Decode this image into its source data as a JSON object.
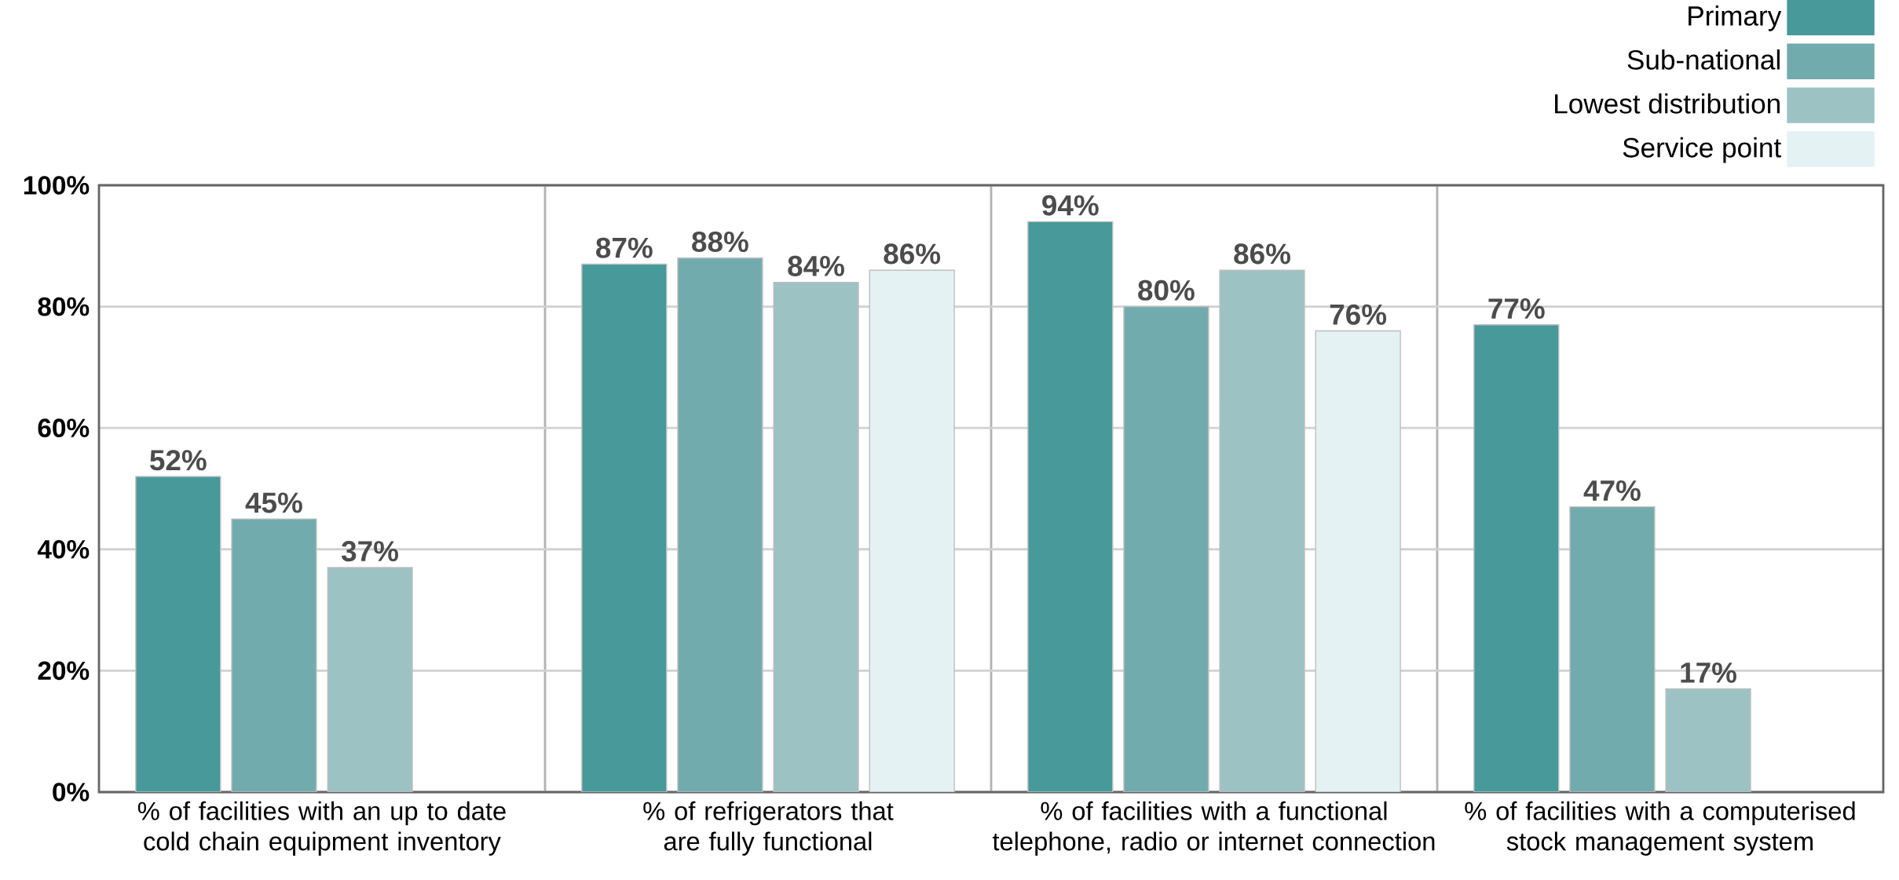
{
  "chart_data": {
    "type": "bar",
    "categories": [
      "% of facilities with an up to date cold chain equipment inventory",
      "% of refrigerators that are fully functional",
      "% of facilities with a functional telephone, radio or internet connection",
      "% of facilities with a computerised stock management system"
    ],
    "series": [
      {
        "name": "Primary",
        "color": "#47999a",
        "values": [
          52,
          87,
          94,
          77
        ],
        "value_labels": [
          "52%",
          "87%",
          "94%",
          "77%"
        ]
      },
      {
        "name": "Sub-national",
        "color": "#72abad",
        "values": [
          45,
          88,
          80,
          47
        ],
        "value_labels": [
          "45%",
          "88%",
          "80%",
          "47%"
        ]
      },
      {
        "name": "Lowest distribution",
        "color": "#9dc2c3",
        "values": [
          37,
          84,
          86,
          17
        ],
        "value_labels": [
          "37%",
          "84%",
          "86%",
          "17%"
        ]
      },
      {
        "name": "Service point",
        "color": "#e4f2f3",
        "values": [
          null,
          86,
          76,
          null
        ],
        "value_labels": [
          null,
          "86%",
          "76%",
          null
        ]
      }
    ],
    "ylim": [
      0,
      100
    ],
    "yticks": [
      {
        "value": 0,
        "label": "0%"
      },
      {
        "value": 20,
        "label": "20%"
      },
      {
        "value": 40,
        "label": "40%"
      },
      {
        "value": 60,
        "label": "60%"
      },
      {
        "value": 80,
        "label": "80%"
      },
      {
        "value": 100,
        "label": "100%"
      }
    ],
    "grid": true,
    "legend": "top right"
  }
}
